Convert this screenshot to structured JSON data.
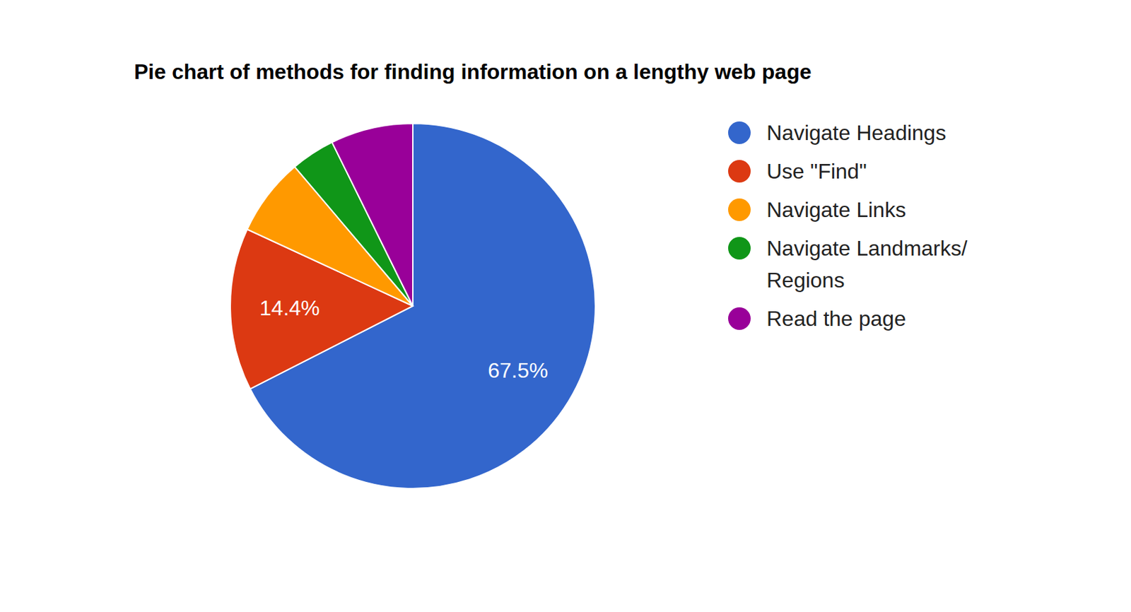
{
  "chart_data": {
    "type": "pie",
    "title": "Pie chart of methods for finding information on a lengthy web page",
    "categories": [
      "Navigate Headings",
      "Use \"Find\"",
      "Navigate Links",
      "Navigate Landmarks/ Regions",
      "Read the page"
    ],
    "values": [
      67.5,
      14.4,
      6.9,
      3.9,
      7.3
    ],
    "colors": [
      "#3366cc",
      "#dc3912",
      "#ff9900",
      "#109618",
      "#990099"
    ],
    "data_labels": true,
    "value_labels": [
      "67.5%",
      "14.4%",
      null,
      null,
      null
    ],
    "legend": "right"
  }
}
